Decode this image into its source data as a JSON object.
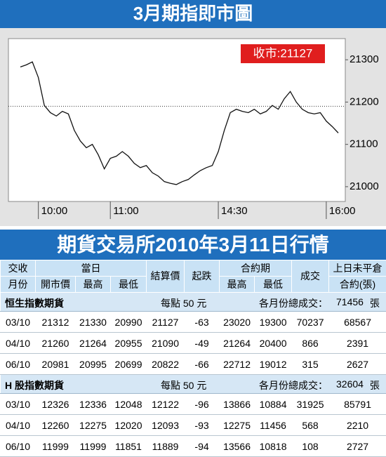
{
  "header": {
    "title": "3月期指即市圖"
  },
  "chart_data": {
    "type": "line",
    "categories": [
      null,
      null,
      null,
      "10:00",
      null,
      null,
      null,
      null,
      null,
      null,
      null,
      null,
      null,
      null,
      null,
      "11:00",
      null,
      null,
      null,
      null,
      null,
      null,
      null,
      null,
      null,
      null,
      null,
      null,
      null,
      null,
      null,
      null,
      null,
      "14:30",
      null,
      null,
      null,
      null,
      null,
      null,
      null,
      null,
      null,
      null,
      null,
      null,
      null,
      null,
      null,
      null,
      null,
      "16:00",
      null,
      null
    ],
    "values": [
      21283,
      21288,
      21295,
      21258,
      21192,
      21175,
      21167,
      21178,
      21172,
      21133,
      21108,
      21092,
      21100,
      21075,
      21042,
      21067,
      21072,
      21083,
      21072,
      21055,
      21045,
      21050,
      21033,
      21025,
      21012,
      21008,
      21005,
      21012,
      21017,
      21028,
      21038,
      21045,
      21050,
      21083,
      21133,
      21175,
      21183,
      21178,
      21175,
      21183,
      21172,
      21178,
      21192,
      21183,
      21208,
      21225,
      21200,
      21183,
      21175,
      21172,
      21175,
      21155,
      21142,
      21127
    ],
    "color": "#111111",
    "ylim": [
      20965,
      21350
    ],
    "yticks": [
      21000,
      21100,
      21200,
      21300
    ],
    "reference_line": 21190,
    "annotation": "收市:21127"
  },
  "table": {
    "title": "期貨交易所2010年3月11日行情",
    "head": {
      "month": [
        "交收",
        "月份"
      ],
      "today": "當日",
      "open": "開市價",
      "high": "最高",
      "low": "最低",
      "settle": "結算價",
      "change": "起跌",
      "contract": "合約期",
      "c_high": "最高",
      "c_low": "最低",
      "volume": "成交",
      "oi": [
        "上日未平倉",
        "合約(張)"
      ]
    },
    "sections": [
      {
        "name": "恒生指數期貨",
        "unit": "每點 50 元",
        "total_label": "各月份總成交：",
        "total": 71456,
        "total_unit": "張",
        "rows": [
          [
            "03/10",
            21312,
            21330,
            20990,
            21127,
            -63,
            23020,
            19300,
            70237,
            68567
          ],
          [
            "04/10",
            21260,
            21264,
            20955,
            21090,
            -49,
            21264,
            20400,
            866,
            2391
          ],
          [
            "06/10",
            20981,
            20995,
            20699,
            20822,
            -66,
            22712,
            19012,
            315,
            2627
          ]
        ]
      },
      {
        "name": "H 股指數期貨",
        "unit": "每點 50 元",
        "total_label": "各月份總成交：",
        "total": 32604,
        "total_unit": "張",
        "rows": [
          [
            "03/10",
            12326,
            12336,
            12048,
            12122,
            -96,
            13866,
            10884,
            31925,
            85791
          ],
          [
            "04/10",
            12260,
            12275,
            12020,
            12093,
            -93,
            12275,
            11456,
            568,
            2210
          ],
          [
            "06/10",
            11999,
            11999,
            11851,
            11889,
            -94,
            13566,
            10818,
            108,
            2727
          ]
        ]
      }
    ]
  }
}
